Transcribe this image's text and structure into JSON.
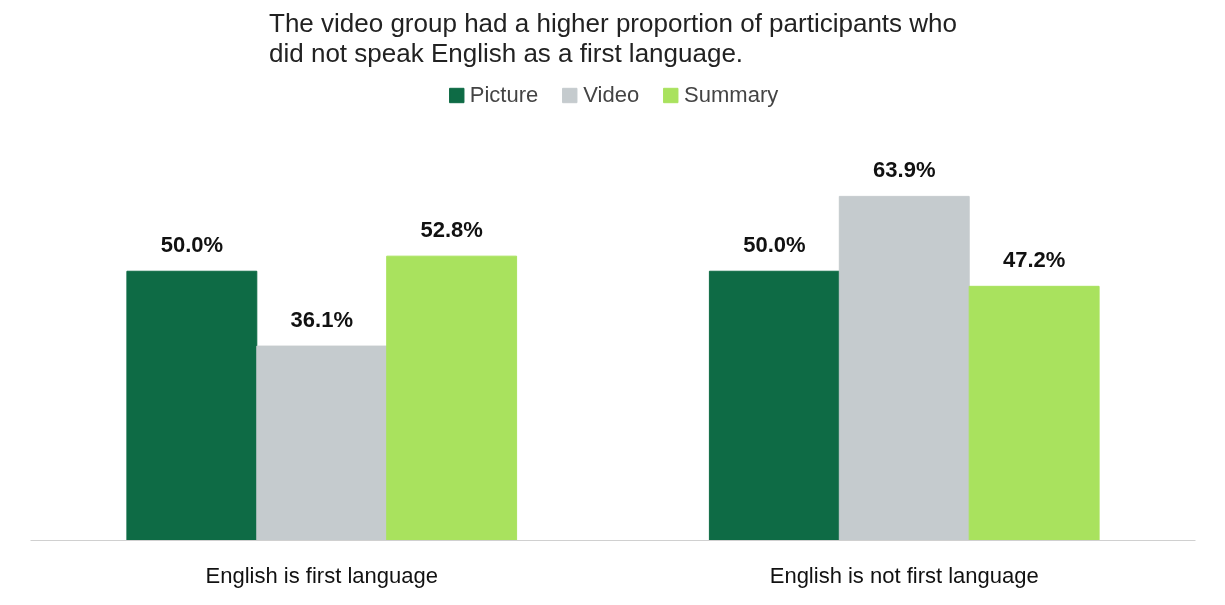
{
  "chart_data": {
    "type": "bar",
    "title": "The video group had a higher proportion of participants who\ndid not speak English as a first language.",
    "categories": [
      "English is first language",
      "English is not first language"
    ],
    "series": [
      {
        "name": "Picture",
        "color": "#0e6b45",
        "values": [
          50.0,
          50.0
        ],
        "value_labels": [
          "50.0%",
          "50.0%"
        ]
      },
      {
        "name": "Video",
        "color": "#c5cbce",
        "values": [
          36.1,
          63.9
        ],
        "value_labels": [
          "36.1%",
          "63.9%"
        ]
      },
      {
        "name": "Summary",
        "color": "#a9e25e",
        "values": [
          52.8,
          47.2
        ],
        "value_labels": [
          "52.8%",
          "47.2%"
        ]
      }
    ],
    "legend": "top",
    "grid": false
  }
}
